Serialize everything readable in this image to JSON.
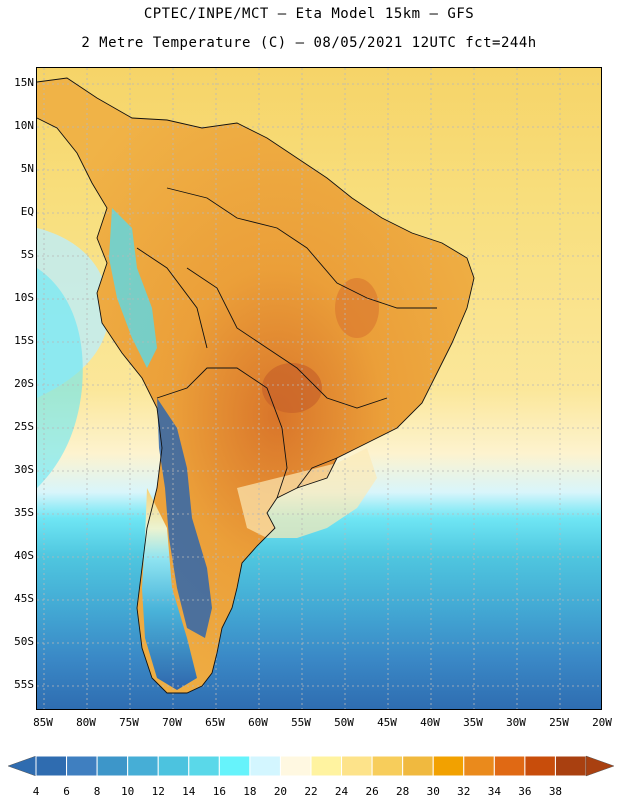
{
  "title_line1": "CPTEC/INPE/MCT –  Eta Model 15km – GFS",
  "title_line2": "2 Metre Temperature (C) – 08/05/2021 12UTC fct=244h",
  "lat_labels": [
    "15N",
    "10N",
    "5N",
    "EQ",
    "5S",
    "10S",
    "15S",
    "20S",
    "25S",
    "30S",
    "35S",
    "40S",
    "45S",
    "50S",
    "55S"
  ],
  "lon_labels": [
    "85W",
    "80W",
    "75W",
    "70W",
    "65W",
    "60W",
    "55W",
    "50W",
    "45W",
    "40W",
    "35W",
    "30W",
    "25W",
    "20W"
  ],
  "colorbar": {
    "ticks": [
      "4",
      "6",
      "8",
      "10",
      "12",
      "14",
      "16",
      "18",
      "20",
      "22",
      "24",
      "26",
      "28",
      "30",
      "32",
      "34",
      "36",
      "38"
    ],
    "colors": [
      "#2f6cb0",
      "#3f7fc0",
      "#3d96c9",
      "#46aed6",
      "#4cc3df",
      "#5ad8e9",
      "#66f3fb",
      "#d3f6ff",
      "#fff8e1",
      "#fff3a0",
      "#fde38a",
      "#f7cd5b",
      "#f0b93f",
      "#f2a100",
      "#ea8a1c",
      "#e06914",
      "#c84d0b",
      "#a94010"
    ]
  },
  "colors": {
    "ocean_north": "#f7d56a",
    "ocean_cold": "#3d85c4",
    "land_hot": "#eb9f39"
  }
}
